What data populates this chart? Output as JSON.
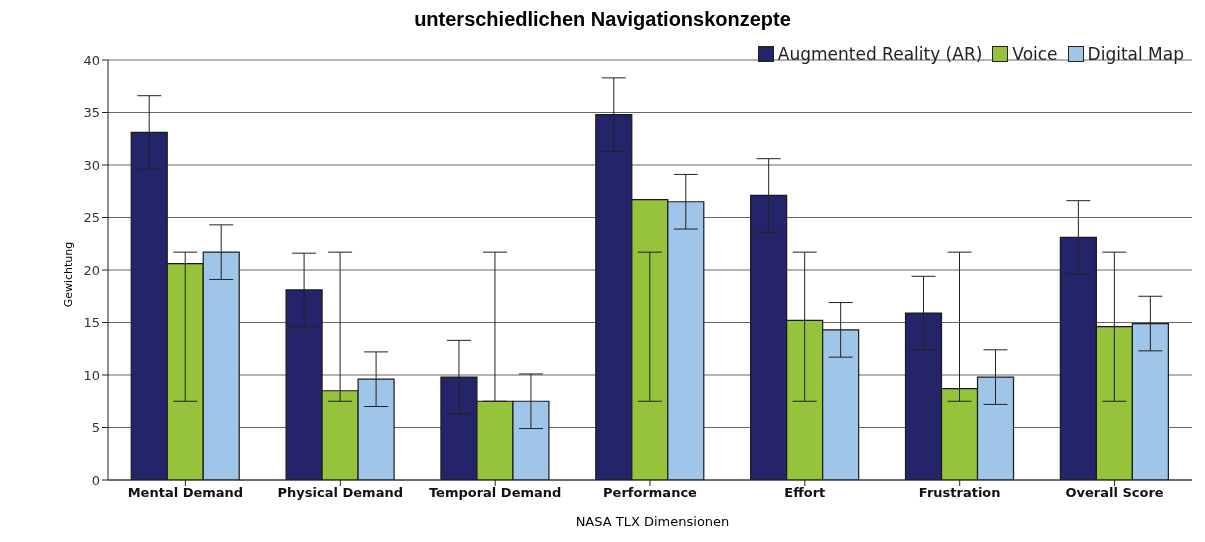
{
  "chart_data": {
    "type": "bar",
    "title": "unterschiedlichen Navigationskonzepte",
    "xlabel": "NASA TLX Dimensionen",
    "ylabel": "Gewichtung",
    "categories": [
      "Mental Demand",
      "Physical Demand",
      "Temporal Demand",
      "Performance",
      "Effort",
      "Frustration",
      "Overall Score"
    ],
    "series": [
      {
        "name": "Augmented Reality (AR)",
        "color": "#24246a",
        "values": [
          33.1,
          18.1,
          9.8,
          34.8,
          27.1,
          15.9,
          23.1
        ],
        "errors": [
          3.5,
          3.5,
          3.5,
          3.5,
          3.5,
          3.5,
          3.5
        ]
      },
      {
        "name": "Voice",
        "color": "#95c33b",
        "values": [
          20.6,
          8.5,
          7.5,
          26.7,
          15.2,
          8.7,
          14.6
        ],
        "errors": [
          [
            7.5,
            21.7
          ],
          [
            7.5,
            21.7
          ],
          [
            7.5,
            21.7
          ],
          [
            7.5,
            21.7
          ],
          [
            7.5,
            21.7
          ],
          [
            7.5,
            21.7
          ],
          [
            7.5,
            21.7
          ]
        ]
      },
      {
        "name": "Digital Map",
        "color": "#9fc5e8",
        "values": [
          21.7,
          9.6,
          7.5,
          26.5,
          14.3,
          9.8,
          14.9
        ],
        "errors": [
          2.6,
          2.6,
          2.6,
          2.6,
          2.6,
          2.6,
          2.6
        ]
      }
    ],
    "ylim": [
      0,
      40
    ],
    "yticks": [
      0,
      5,
      10,
      15,
      20,
      25,
      30,
      35,
      40
    ],
    "grid": "y",
    "legend": "top right"
  }
}
